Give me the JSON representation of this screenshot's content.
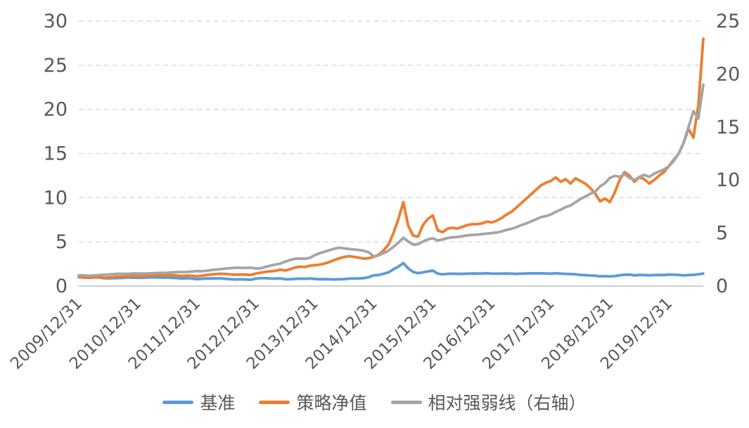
{
  "style": {
    "background": "#FFFFFF",
    "text_color": "#595959",
    "grid_color": "#D9D9D9",
    "axis_color": "#BFBFBF"
  },
  "chart_data": {
    "type": "line",
    "title": "",
    "grid": "horizontal-dashed",
    "legend_position": "bottom",
    "x_start": "2009/12/31",
    "x_step": "month",
    "x_tick_labels": [
      "2009/12/31",
      "2010/12/31",
      "2011/12/31",
      "2012/12/31",
      "2013/12/31",
      "2014/12/31",
      "2015/12/31",
      "2016/12/31",
      "2017/12/31",
      "2018/12/31",
      "2019/12/31"
    ],
    "x_tick_indices": [
      0,
      12,
      24,
      36,
      48,
      60,
      72,
      84,
      96,
      108,
      120
    ],
    "left_axis": {
      "min": 0,
      "max": 30,
      "step": 5
    },
    "right_axis": {
      "min": 0,
      "max": 25,
      "step": 5
    },
    "series": [
      {
        "id": "benchmark",
        "name": "基准",
        "axis": "left",
        "color": "#5B9BD5",
        "values": [
          1.0,
          0.96,
          0.98,
          0.99,
          0.96,
          0.89,
          0.87,
          0.89,
          0.9,
          0.92,
          0.97,
          0.95,
          0.94,
          0.93,
          0.97,
          0.98,
          0.99,
          0.95,
          0.96,
          0.94,
          0.9,
          0.85,
          0.89,
          0.84,
          0.78,
          0.82,
          0.87,
          0.86,
          0.87,
          0.86,
          0.81,
          0.77,
          0.74,
          0.76,
          0.74,
          0.72,
          0.84,
          0.89,
          0.88,
          0.85,
          0.84,
          0.87,
          0.76,
          0.77,
          0.81,
          0.84,
          0.83,
          0.86,
          0.8,
          0.77,
          0.78,
          0.76,
          0.75,
          0.76,
          0.78,
          0.84,
          0.85,
          0.87,
          0.9,
          1.0,
          1.22,
          1.25,
          1.4,
          1.55,
          1.9,
          2.2,
          2.6,
          2.0,
          1.6,
          1.45,
          1.55,
          1.65,
          1.75,
          1.4,
          1.32,
          1.38,
          1.4,
          1.38,
          1.38,
          1.4,
          1.42,
          1.41,
          1.42,
          1.45,
          1.4,
          1.4,
          1.41,
          1.42,
          1.4,
          1.38,
          1.4,
          1.42,
          1.44,
          1.43,
          1.44,
          1.42,
          1.4,
          1.45,
          1.4,
          1.38,
          1.35,
          1.33,
          1.26,
          1.23,
          1.19,
          1.18,
          1.1,
          1.12,
          1.08,
          1.12,
          1.22,
          1.28,
          1.3,
          1.21,
          1.26,
          1.24,
          1.22,
          1.24,
          1.26,
          1.24,
          1.3,
          1.28,
          1.26,
          1.2,
          1.24,
          1.26,
          1.34,
          1.42
        ]
      },
      {
        "id": "strategy-nav",
        "name": "策略净值",
        "axis": "left",
        "color": "#ED7D31",
        "values": [
          1.0,
          0.97,
          0.94,
          0.97,
          1.0,
          0.95,
          0.97,
          1.02,
          1.05,
          1.07,
          1.12,
          1.16,
          1.13,
          1.11,
          1.16,
          1.2,
          1.23,
          1.19,
          1.21,
          1.23,
          1.19,
          1.13,
          1.19,
          1.16,
          1.11,
          1.16,
          1.26,
          1.31,
          1.36,
          1.39,
          1.36,
          1.31,
          1.29,
          1.31,
          1.29,
          1.26,
          1.41,
          1.51,
          1.61,
          1.66,
          1.72,
          1.86,
          1.76,
          1.91,
          2.1,
          2.2,
          2.16,
          2.31,
          2.36,
          2.42,
          2.55,
          2.72,
          2.95,
          3.15,
          3.3,
          3.38,
          3.3,
          3.2,
          3.1,
          3.15,
          3.3,
          3.55,
          4.05,
          4.7,
          6.0,
          7.6,
          9.5,
          6.8,
          5.7,
          5.6,
          6.9,
          7.6,
          8.0,
          6.3,
          6.1,
          6.5,
          6.6,
          6.5,
          6.7,
          6.9,
          7.0,
          7.0,
          7.1,
          7.3,
          7.2,
          7.4,
          7.7,
          8.1,
          8.4,
          8.9,
          9.4,
          9.9,
          10.4,
          10.9,
          11.4,
          11.7,
          11.9,
          12.3,
          11.8,
          12.1,
          11.6,
          12.2,
          11.9,
          11.6,
          11.1,
          10.5,
          9.6,
          9.9,
          9.5,
          10.6,
          12.0,
          12.9,
          12.5,
          11.8,
          12.3,
          12.1,
          11.6,
          12.0,
          12.5,
          12.9,
          13.6,
          14.3,
          15.0,
          16.2,
          17.8,
          16.8,
          20.5,
          28.0
        ]
      },
      {
        "id": "relative-strength",
        "name": "相对强弱线（右轴）",
        "axis": "right",
        "color": "#A5A5A5",
        "values": [
          1.0,
          1.0,
          0.97,
          1.0,
          1.03,
          1.06,
          1.09,
          1.12,
          1.15,
          1.15,
          1.14,
          1.18,
          1.18,
          1.18,
          1.18,
          1.21,
          1.23,
          1.24,
          1.25,
          1.29,
          1.31,
          1.32,
          1.33,
          1.37,
          1.41,
          1.4,
          1.44,
          1.51,
          1.55,
          1.6,
          1.66,
          1.69,
          1.73,
          1.71,
          1.72,
          1.73,
          1.66,
          1.68,
          1.81,
          1.93,
          2.02,
          2.12,
          2.3,
          2.46,
          2.57,
          2.6,
          2.58,
          2.66,
          2.92,
          3.1,
          3.24,
          3.39,
          3.52,
          3.62,
          3.55,
          3.5,
          3.44,
          3.4,
          3.32,
          3.18,
          2.78,
          2.9,
          3.1,
          3.35,
          3.7,
          4.1,
          4.55,
          4.2,
          3.9,
          3.95,
          4.2,
          4.4,
          4.5,
          4.3,
          4.4,
          4.52,
          4.6,
          4.62,
          4.7,
          4.78,
          4.82,
          4.85,
          4.9,
          4.95,
          5.0,
          5.05,
          5.15,
          5.3,
          5.4,
          5.55,
          5.75,
          5.9,
          6.1,
          6.3,
          6.5,
          6.6,
          6.75,
          7.0,
          7.2,
          7.45,
          7.6,
          7.9,
          8.2,
          8.45,
          8.7,
          8.9,
          9.4,
          9.7,
          10.2,
          10.4,
          10.3,
          10.55,
          10.2,
          10.0,
          10.3,
          10.5,
          10.3,
          10.6,
          10.8,
          11.0,
          11.3,
          11.8,
          12.5,
          13.5,
          15.0,
          16.5,
          15.8,
          19.0
        ]
      }
    ]
  }
}
